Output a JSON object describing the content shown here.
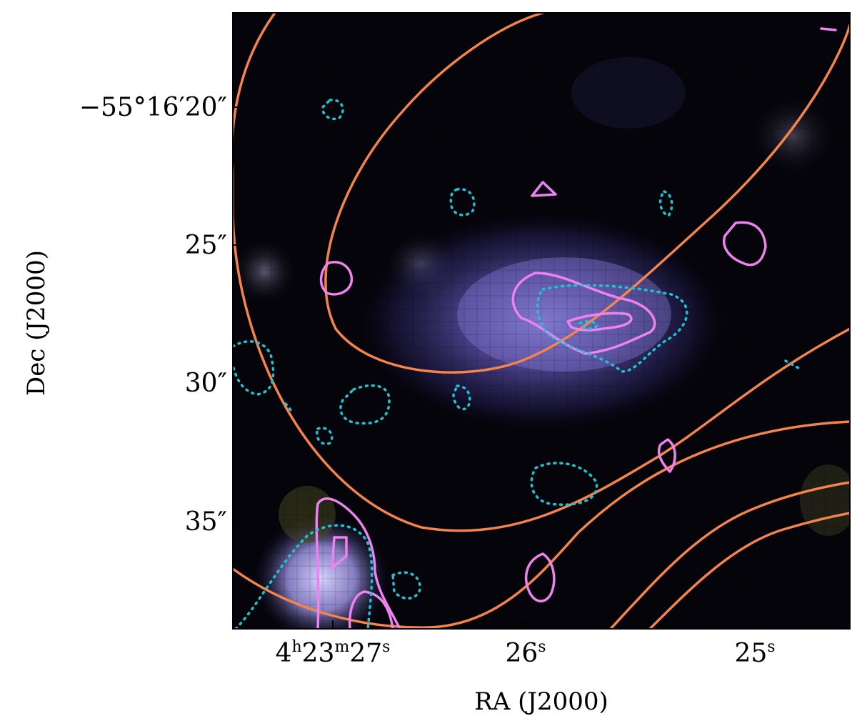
{
  "figure": {
    "xlabel": "RA (J2000)",
    "ylabel": "Dec (J2000)",
    "x_ticks": [
      {
        "main": "4",
        "sup1": "h",
        "mid": "23",
        "sup2": "m",
        "end": "27",
        "sup3": "s"
      },
      {
        "main": "26",
        "sup": "s"
      },
      {
        "main": "25",
        "sup": "s"
      }
    ],
    "y_ticks": [
      "−55°16′20″",
      "25″",
      "30″",
      "35″"
    ]
  },
  "colors": {
    "frame": "#000000",
    "orange_contour": "#f5844c",
    "magenta_contour": "#ee82ee",
    "cyan_contour": "#1ec3d2",
    "galaxy_core": "#8a82d8",
    "bright_source": "#c9c2f2"
  }
}
